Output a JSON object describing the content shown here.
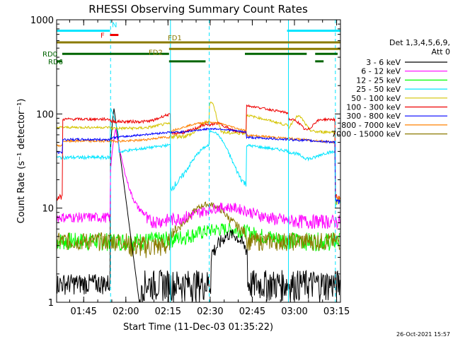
{
  "chart_data": {
    "type": "line",
    "title": "RHESSI Observing Summary Count Rates",
    "xlabel": "Start Time (11-Dec-03 01:35:22)",
    "ylabel": "Count Rate (s⁻¹ detector⁻¹)",
    "x_unit": "minutes",
    "xlim": [
      0,
      101
    ],
    "ylim": [
      1,
      1000
    ],
    "yscale": "log",
    "x_ticks": [
      {
        "v": 9.63,
        "label": "01:45"
      },
      {
        "v": 24.63,
        "label": "02:00"
      },
      {
        "v": 39.63,
        "label": "02:15"
      },
      {
        "v": 54.63,
        "label": "02:30"
      },
      {
        "v": 69.63,
        "label": "02:45"
      },
      {
        "v": 84.63,
        "label": "03:00"
      },
      {
        "v": 99.63,
        "label": "03:15"
      }
    ],
    "y_ticks": [
      {
        "v": 1,
        "label": "1"
      },
      {
        "v": 10,
        "label": "10"
      },
      {
        "v": 100,
        "label": "100"
      },
      {
        "v": 1000,
        "label": "1000"
      }
    ],
    "legend": {
      "placement": "right",
      "header1": "Det 1,3,4,5,6,9,",
      "header2": "Att 0"
    },
    "series": [
      {
        "name": "3 - 6 keV",
        "color": "#000000"
      },
      {
        "name": "6 - 12 keV",
        "color": "#ff00ff"
      },
      {
        "name": "12 - 25 keV",
        "color": "#00ff00"
      },
      {
        "name": "25 - 50 keV",
        "color": "#00e5ff"
      },
      {
        "name": "50 - 100 keV",
        "color": "#d4c400"
      },
      {
        "name": "100 - 300 keV",
        "color": "#ee0000"
      },
      {
        "name": "300 - 800 keV",
        "color": "#0000ff"
      },
      {
        "name": "800 - 7000 keV",
        "color": "#ff8000"
      },
      {
        "name": "7000 - 15000 keV",
        "color": "#8b7a00"
      }
    ],
    "flag_bars": [
      {
        "label": "N",
        "color": "#00e5ff",
        "y": 765,
        "segments": [
          [
            0,
            19
          ],
          [
            82,
            101
          ]
        ]
      },
      {
        "label": "F",
        "color": "#ee0000",
        "y": 690,
        "segments": [
          [
            19,
            22
          ]
        ]
      },
      {
        "label": "FD1",
        "color": "#8b7a00",
        "y": 575,
        "segments": [
          [
            0,
            101
          ]
        ]
      },
      {
        "label": "FD2",
        "color": "#8b7a00",
        "y": 490,
        "segments": [
          [
            40,
            101
          ]
        ]
      },
      {
        "label": "RD0",
        "color": "#006400",
        "y": 435,
        "segments": [
          [
            2,
            40
          ],
          [
            67,
            89
          ],
          [
            92,
            100
          ]
        ]
      },
      {
        "label": "RD6",
        "color": "#006400",
        "y": 362,
        "segments": [
          [
            0,
            2
          ],
          [
            40,
            53
          ],
          [
            92,
            95
          ]
        ]
      }
    ],
    "vlines": [
      {
        "x": 0,
        "style": "solid"
      },
      {
        "x": 19.2,
        "style": "dashed"
      },
      {
        "x": 40.5,
        "style": "solid"
      },
      {
        "x": 54.3,
        "style": "dashed"
      },
      {
        "x": 82.5,
        "style": "solid"
      },
      {
        "x": 99.2,
        "style": "dashed"
      }
    ],
    "vline_color": "#00e5ff",
    "grid": false
  },
  "footer": {
    "timestamp": "26-Oct-2021 15:57"
  }
}
